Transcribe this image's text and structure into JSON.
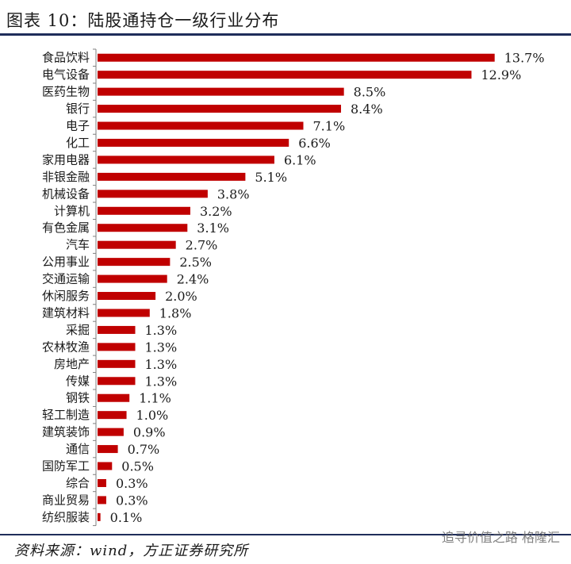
{
  "header": {
    "title": "图表 10：陆股通持仓一级行业分布"
  },
  "footer": {
    "source": "资料来源：wind，方正证券研究所"
  },
  "watermark": {
    "text": "追寻价值之路 格隆汇"
  },
  "chart_data": {
    "type": "bar",
    "orientation": "horizontal",
    "title": "",
    "xlabel": "",
    "ylabel": "",
    "value_format": "percent",
    "bar_color": "#c00000",
    "categories": [
      "食品饮料",
      "电气设备",
      "医药生物",
      "银行",
      "电子",
      "化工",
      "家用电器",
      "非银金融",
      "机械设备",
      "计算机",
      "有色金属",
      "汽车",
      "公用事业",
      "交通运输",
      "休闲服务",
      "建筑材料",
      "采掘",
      "农林牧渔",
      "房地产",
      "传媒",
      "钢铁",
      "轻工制造",
      "建筑装饰",
      "通信",
      "国防军工",
      "综合",
      "商业贸易",
      "纺织服装"
    ],
    "values": [
      13.7,
      12.9,
      8.5,
      8.4,
      7.1,
      6.6,
      6.1,
      5.1,
      3.8,
      3.2,
      3.1,
      2.7,
      2.5,
      2.4,
      2.0,
      1.8,
      1.3,
      1.3,
      1.3,
      1.3,
      1.1,
      1.0,
      0.9,
      0.7,
      0.5,
      0.3,
      0.3,
      0.1
    ],
    "labels": [
      "13.7%",
      "12.9%",
      "8.5%",
      "8.4%",
      "7.1%",
      "6.6%",
      "6.1%",
      "5.1%",
      "3.8%",
      "3.2%",
      "3.1%",
      "2.7%",
      "2.5%",
      "2.4%",
      "2.0%",
      "1.8%",
      "1.3%",
      "1.3%",
      "1.3%",
      "1.3%",
      "1.1%",
      "1.0%",
      "0.9%",
      "0.7%",
      "0.5%",
      "0.3%",
      "0.3%",
      "0.1%"
    ],
    "xlim": [
      0,
      14.2
    ],
    "grid": false,
    "legend": "none"
  }
}
